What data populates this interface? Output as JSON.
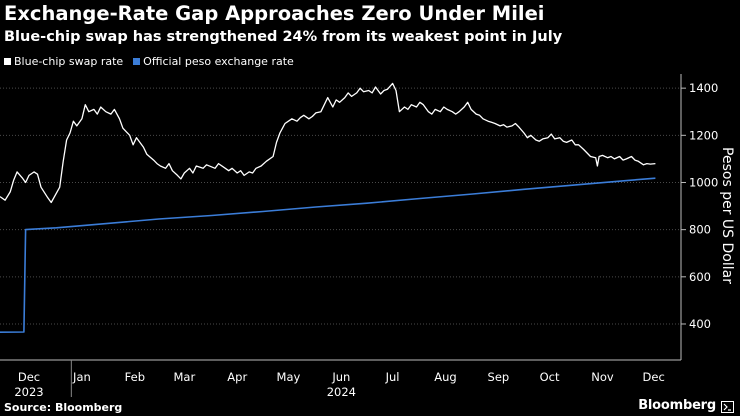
{
  "header": {
    "title": "Exchange-Rate Gap Approaches Zero Under Milei",
    "subtitle": "Blue-chip swap has strengthened 24% from its weakest point in July"
  },
  "footer": {
    "source": "Source: Bloomberg",
    "brand": "Bloomberg",
    "brand_icon": "bloomberg-terminal-icon"
  },
  "colors": {
    "background": "#000000",
    "blue_chip": "#ffffff",
    "official": "#3b7dd8",
    "grid": "#4a4a4a"
  },
  "chart_data": {
    "type": "line",
    "title": "Exchange-Rate Gap Approaches Zero Under Milei",
    "subtitle": "Blue-chip swap has strengthened 24% from its weakest point in July",
    "ylabel": "Pesos per US Dollar",
    "xlabel": "",
    "ylim": [
      260,
      1460
    ],
    "xlim": [
      "2023-11-28",
      "2024-12-31"
    ],
    "y_ticks": [
      400,
      600,
      800,
      1000,
      1200,
      1400
    ],
    "x_ticks": [
      {
        "label": "Dec",
        "date": "2023-12-15"
      },
      {
        "label": "Jan",
        "date": "2024-01-15"
      },
      {
        "label": "Feb",
        "date": "2024-02-15"
      },
      {
        "label": "Mar",
        "date": "2024-03-15"
      },
      {
        "label": "Apr",
        "date": "2024-04-15"
      },
      {
        "label": "May",
        "date": "2024-05-15"
      },
      {
        "label": "Jun",
        "date": "2024-06-15"
      },
      {
        "label": "Jul",
        "date": "2024-07-15"
      },
      {
        "label": "Aug",
        "date": "2024-08-15"
      },
      {
        "label": "Sep",
        "date": "2024-09-15"
      },
      {
        "label": "Oct",
        "date": "2024-10-15"
      },
      {
        "label": "Nov",
        "date": "2024-11-15"
      },
      {
        "label": "Dec",
        "date": "2024-12-15"
      }
    ],
    "year_labels": [
      {
        "label": "2023",
        "date": "2023-12-15"
      },
      {
        "label": "2024",
        "date": "2024-06-15"
      }
    ],
    "grid": true,
    "legend_position": "top-left",
    "series": [
      {
        "name": "Blue-chip swap rate",
        "color": "#ffffff",
        "points": [
          [
            "2023-11-28",
            940
          ],
          [
            "2023-12-01",
            925
          ],
          [
            "2023-12-04",
            960
          ],
          [
            "2023-12-06",
            1010
          ],
          [
            "2023-12-08",
            1045
          ],
          [
            "2023-12-11",
            1020
          ],
          [
            "2023-12-13",
            1000
          ],
          [
            "2023-12-15",
            1030
          ],
          [
            "2023-12-18",
            1045
          ],
          [
            "2023-12-20",
            1035
          ],
          [
            "2023-12-22",
            980
          ],
          [
            "2023-12-26",
            935
          ],
          [
            "2023-12-28",
            915
          ],
          [
            "2024-01-02",
            980
          ],
          [
            "2024-01-04",
            1090
          ],
          [
            "2024-01-06",
            1180
          ],
          [
            "2024-01-08",
            1210
          ],
          [
            "2024-01-10",
            1260
          ],
          [
            "2024-01-12",
            1240
          ],
          [
            "2024-01-15",
            1270
          ],
          [
            "2024-01-17",
            1330
          ],
          [
            "2024-01-19",
            1300
          ],
          [
            "2024-01-22",
            1310
          ],
          [
            "2024-01-24",
            1290
          ],
          [
            "2024-01-26",
            1320
          ],
          [
            "2024-01-29",
            1300
          ],
          [
            "2024-02-01",
            1290
          ],
          [
            "2024-02-03",
            1310
          ],
          [
            "2024-02-06",
            1270
          ],
          [
            "2024-02-08",
            1230
          ],
          [
            "2024-02-12",
            1200
          ],
          [
            "2024-02-14",
            1160
          ],
          [
            "2024-02-16",
            1190
          ],
          [
            "2024-02-20",
            1150
          ],
          [
            "2024-02-22",
            1120
          ],
          [
            "2024-02-26",
            1095
          ],
          [
            "2024-02-28",
            1080
          ],
          [
            "2024-03-01",
            1070
          ],
          [
            "2024-03-04",
            1060
          ],
          [
            "2024-03-06",
            1080
          ],
          [
            "2024-03-08",
            1050
          ],
          [
            "2024-03-11",
            1030
          ],
          [
            "2024-03-13",
            1015
          ],
          [
            "2024-03-15",
            1040
          ],
          [
            "2024-03-18",
            1060
          ],
          [
            "2024-03-20",
            1040
          ],
          [
            "2024-03-22",
            1070
          ],
          [
            "2024-03-26",
            1060
          ],
          [
            "2024-03-28",
            1075
          ],
          [
            "2024-04-02",
            1060
          ],
          [
            "2024-04-04",
            1080
          ],
          [
            "2024-04-08",
            1060
          ],
          [
            "2024-04-10",
            1050
          ],
          [
            "2024-04-12",
            1060
          ],
          [
            "2024-04-15",
            1040
          ],
          [
            "2024-04-17",
            1050
          ],
          [
            "2024-04-19",
            1030
          ],
          [
            "2024-04-22",
            1045
          ],
          [
            "2024-04-24",
            1040
          ],
          [
            "2024-04-26",
            1060
          ],
          [
            "2024-04-29",
            1070
          ],
          [
            "2024-05-02",
            1090
          ],
          [
            "2024-05-06",
            1110
          ],
          [
            "2024-05-08",
            1170
          ],
          [
            "2024-05-10",
            1210
          ],
          [
            "2024-05-13",
            1250
          ],
          [
            "2024-05-15",
            1260
          ],
          [
            "2024-05-17",
            1270
          ],
          [
            "2024-05-20",
            1260
          ],
          [
            "2024-05-22",
            1275
          ],
          [
            "2024-05-24",
            1285
          ],
          [
            "2024-05-27",
            1270
          ],
          [
            "2024-05-29",
            1280
          ],
          [
            "2024-05-31",
            1295
          ],
          [
            "2024-06-03",
            1300
          ],
          [
            "2024-06-05",
            1330
          ],
          [
            "2024-06-07",
            1360
          ],
          [
            "2024-06-10",
            1320
          ],
          [
            "2024-06-12",
            1350
          ],
          [
            "2024-06-14",
            1340
          ],
          [
            "2024-06-17",
            1360
          ],
          [
            "2024-06-19",
            1380
          ],
          [
            "2024-06-21",
            1365
          ],
          [
            "2024-06-24",
            1380
          ],
          [
            "2024-06-26",
            1400
          ],
          [
            "2024-06-28",
            1385
          ],
          [
            "2024-07-01",
            1390
          ],
          [
            "2024-07-03",
            1380
          ],
          [
            "2024-07-05",
            1405
          ],
          [
            "2024-07-08",
            1375
          ],
          [
            "2024-07-10",
            1390
          ],
          [
            "2024-07-12",
            1395
          ],
          [
            "2024-07-15",
            1420
          ],
          [
            "2024-07-17",
            1390
          ],
          [
            "2024-07-19",
            1300
          ],
          [
            "2024-07-22",
            1320
          ],
          [
            "2024-07-24",
            1310
          ],
          [
            "2024-07-26",
            1330
          ],
          [
            "2024-07-29",
            1320
          ],
          [
            "2024-07-31",
            1340
          ],
          [
            "2024-08-02",
            1330
          ],
          [
            "2024-08-05",
            1300
          ],
          [
            "2024-08-07",
            1290
          ],
          [
            "2024-08-09",
            1310
          ],
          [
            "2024-08-12",
            1300
          ],
          [
            "2024-08-14",
            1320
          ],
          [
            "2024-08-16",
            1310
          ],
          [
            "2024-08-19",
            1300
          ],
          [
            "2024-08-21",
            1290
          ],
          [
            "2024-08-23",
            1300
          ],
          [
            "2024-08-26",
            1320
          ],
          [
            "2024-08-28",
            1340
          ],
          [
            "2024-08-30",
            1310
          ],
          [
            "2024-09-02",
            1290
          ],
          [
            "2024-09-04",
            1285
          ],
          [
            "2024-09-06",
            1270
          ],
          [
            "2024-09-09",
            1260
          ],
          [
            "2024-09-11",
            1255
          ],
          [
            "2024-09-13",
            1250
          ],
          [
            "2024-09-16",
            1240
          ],
          [
            "2024-09-18",
            1245
          ],
          [
            "2024-09-20",
            1235
          ],
          [
            "2024-09-23",
            1240
          ],
          [
            "2024-09-25",
            1250
          ],
          [
            "2024-09-27",
            1235
          ],
          [
            "2024-09-30",
            1210
          ],
          [
            "2024-10-02",
            1190
          ],
          [
            "2024-10-04",
            1200
          ],
          [
            "2024-10-07",
            1180
          ],
          [
            "2024-10-09",
            1175
          ],
          [
            "2024-10-11",
            1185
          ],
          [
            "2024-10-14",
            1190
          ],
          [
            "2024-10-16",
            1205
          ],
          [
            "2024-10-18",
            1185
          ],
          [
            "2024-10-21",
            1190
          ],
          [
            "2024-10-23",
            1175
          ],
          [
            "2024-10-25",
            1170
          ],
          [
            "2024-10-28",
            1180
          ],
          [
            "2024-10-30",
            1160
          ],
          [
            "2024-11-01",
            1160
          ],
          [
            "2024-11-04",
            1140
          ],
          [
            "2024-11-06",
            1125
          ],
          [
            "2024-11-08",
            1110
          ],
          [
            "2024-11-11",
            1105
          ],
          [
            "2024-11-12",
            1070
          ],
          [
            "2024-11-13",
            1110
          ],
          [
            "2024-11-15",
            1115
          ],
          [
            "2024-11-18",
            1105
          ],
          [
            "2024-11-20",
            1110
          ],
          [
            "2024-11-22",
            1100
          ],
          [
            "2024-11-25",
            1110
          ],
          [
            "2024-11-27",
            1095
          ],
          [
            "2024-11-29",
            1100
          ],
          [
            "2024-12-02",
            1110
          ],
          [
            "2024-12-04",
            1095
          ],
          [
            "2024-12-06",
            1090
          ],
          [
            "2024-12-09",
            1075
          ],
          [
            "2024-12-11",
            1080
          ],
          [
            "2024-12-13",
            1078
          ],
          [
            "2024-12-16",
            1080
          ]
        ]
      },
      {
        "name": "Official peso exchange rate",
        "color": "#3b7dd8",
        "points": [
          [
            "2023-11-28",
            365
          ],
          [
            "2023-12-12",
            366
          ],
          [
            "2023-12-13",
            800
          ],
          [
            "2023-12-31",
            808
          ],
          [
            "2024-01-31",
            827
          ],
          [
            "2024-02-29",
            845
          ],
          [
            "2024-03-31",
            860
          ],
          [
            "2024-04-30",
            877
          ],
          [
            "2024-05-31",
            896
          ],
          [
            "2024-06-30",
            912
          ],
          [
            "2024-07-31",
            932
          ],
          [
            "2024-08-31",
            951
          ],
          [
            "2024-09-30",
            971
          ],
          [
            "2024-10-31",
            990
          ],
          [
            "2024-11-30",
            1009
          ],
          [
            "2024-12-16",
            1018
          ]
        ]
      }
    ]
  }
}
